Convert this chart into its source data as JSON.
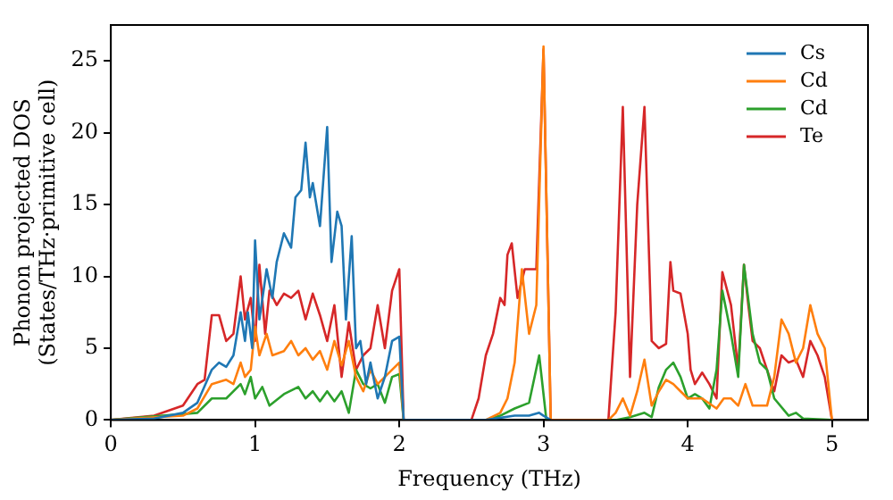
{
  "chart_data": {
    "type": "line",
    "xlabel": "Frequency (THz)",
    "ylabel": "Phonon projected DOS\n(States/THz·primitive cell)",
    "xlim": [
      0,
      5.25
    ],
    "ylim": [
      0,
      27.5
    ],
    "xticks": [
      0,
      1,
      2,
      3,
      4,
      5
    ],
    "yticks": [
      0,
      5,
      10,
      15,
      20,
      25
    ],
    "grid": false,
    "legend": "top right",
    "marker": "none",
    "line_style": "solid",
    "series": [
      {
        "name": "Cs",
        "color": "#1f77b4",
        "x": [
          0,
          0.3,
          0.5,
          0.6,
          0.7,
          0.75,
          0.8,
          0.85,
          0.9,
          0.93,
          0.95,
          0.98,
          1.0,
          1.03,
          1.08,
          1.12,
          1.15,
          1.2,
          1.25,
          1.28,
          1.32,
          1.35,
          1.38,
          1.4,
          1.45,
          1.5,
          1.53,
          1.57,
          1.6,
          1.63,
          1.67,
          1.7,
          1.73,
          1.77,
          1.8,
          1.85,
          1.9,
          1.95,
          2.0,
          2.03,
          2.6,
          2.8,
          2.9,
          2.97,
          3.0,
          3.05
        ],
        "values": [
          0,
          0.1,
          0.5,
          1.2,
          3.5,
          4,
          3.7,
          4.5,
          7.5,
          5.5,
          7.5,
          5,
          12.5,
          7,
          10.5,
          8.5,
          11,
          13,
          12,
          15.5,
          16,
          19.3,
          15.5,
          16.5,
          13.5,
          20.4,
          11,
          14.5,
          13.5,
          7,
          12.8,
          5,
          5.5,
          2.5,
          4,
          1.5,
          3,
          5.5,
          5.8,
          0,
          0,
          0.3,
          0.3,
          0.5,
          0.3,
          0
        ]
      },
      {
        "name": "Cd",
        "color": "#ff7f0e",
        "x": [
          0,
          0.5,
          0.6,
          0.7,
          0.8,
          0.85,
          0.9,
          0.93,
          0.97,
          1.0,
          1.03,
          1.08,
          1.12,
          1.2,
          1.25,
          1.3,
          1.35,
          1.4,
          1.45,
          1.5,
          1.55,
          1.6,
          1.65,
          1.7,
          1.75,
          1.8,
          1.85,
          1.9,
          1.95,
          2.0,
          2.03,
          2.6,
          2.7,
          2.75,
          2.8,
          2.85,
          2.9,
          2.95,
          3.0,
          3.05,
          3.45,
          3.5,
          3.55,
          3.6,
          3.65,
          3.7,
          3.75,
          3.8,
          3.85,
          3.9,
          3.95,
          4.0,
          4.1,
          4.2,
          4.25,
          4.3,
          4.35,
          4.4,
          4.45,
          4.55,
          4.6,
          4.65,
          4.7,
          4.75,
          4.8,
          4.85,
          4.9,
          4.95,
          5.0
        ],
        "values": [
          0,
          0.3,
          0.8,
          2.5,
          2.8,
          2.5,
          4,
          3,
          3.5,
          6.5,
          4.5,
          6,
          4.5,
          4.8,
          5.5,
          4.5,
          5,
          4.2,
          4.8,
          3.5,
          5.5,
          3.8,
          5.5,
          3,
          2,
          3.5,
          2.5,
          3,
          3.5,
          4,
          0,
          0,
          0.5,
          1.5,
          4,
          10.5,
          6,
          8,
          26,
          0,
          0,
          0.5,
          1.5,
          0.3,
          2,
          4.2,
          1,
          2,
          2.8,
          2.5,
          2,
          1.5,
          1.5,
          0.8,
          1.5,
          1.5,
          1,
          2.5,
          1,
          1,
          3,
          7,
          6,
          4,
          5,
          8,
          6,
          5,
          0
        ]
      },
      {
        "name": "Cd",
        "color": "#2ca02c",
        "x": [
          0,
          0.6,
          0.7,
          0.8,
          0.9,
          0.93,
          0.97,
          1.0,
          1.05,
          1.1,
          1.2,
          1.3,
          1.35,
          1.4,
          1.45,
          1.5,
          1.55,
          1.6,
          1.65,
          1.7,
          1.75,
          1.8,
          1.85,
          1.9,
          1.95,
          2.0,
          2.03,
          2.6,
          2.7,
          2.8,
          2.9,
          2.97,
          3.02,
          3.5,
          3.6,
          3.7,
          3.75,
          3.8,
          3.85,
          3.9,
          3.95,
          4.0,
          4.05,
          4.1,
          4.15,
          4.2,
          4.24,
          4.3,
          4.35,
          4.39,
          4.45,
          4.5,
          4.55,
          4.6,
          4.7,
          4.75,
          4.8,
          5.0
        ],
        "values": [
          0,
          0.5,
          1.5,
          1.5,
          2.5,
          1.8,
          3,
          1.5,
          2.3,
          1,
          1.8,
          2.3,
          1.5,
          2,
          1.3,
          2,
          1.3,
          2,
          0.5,
          3.5,
          2.5,
          2.2,
          2.5,
          1.2,
          3,
          3.2,
          0,
          0,
          0.3,
          0.8,
          1.2,
          4.5,
          0,
          0,
          0.2,
          0.5,
          0.2,
          2.3,
          3.5,
          4,
          3,
          1.5,
          1.8,
          1.5,
          0.8,
          3.5,
          9,
          6,
          3,
          10.8,
          6,
          4,
          3.5,
          1.5,
          0.3,
          0.5,
          0.1,
          0
        ]
      },
      {
        "name": "Te",
        "color": "#d62728",
        "x": [
          0,
          0.3,
          0.5,
          0.6,
          0.65,
          0.7,
          0.75,
          0.8,
          0.85,
          0.9,
          0.93,
          0.97,
          1.0,
          1.03,
          1.07,
          1.1,
          1.15,
          1.2,
          1.25,
          1.3,
          1.35,
          1.4,
          1.45,
          1.5,
          1.55,
          1.6,
          1.65,
          1.7,
          1.75,
          1.8,
          1.85,
          1.9,
          1.95,
          2.0,
          2.03,
          2.5,
          2.55,
          2.6,
          2.65,
          2.7,
          2.73,
          2.75,
          2.78,
          2.82,
          2.87,
          2.95,
          3.0,
          3.05,
          3.45,
          3.5,
          3.55,
          3.6,
          3.65,
          3.7,
          3.75,
          3.8,
          3.85,
          3.88,
          3.9,
          3.95,
          4.0,
          4.02,
          4.05,
          4.1,
          4.15,
          4.2,
          4.24,
          4.3,
          4.35,
          4.39,
          4.42,
          4.45,
          4.5,
          4.55,
          4.6,
          4.65,
          4.7,
          4.75,
          4.8,
          4.85,
          4.9,
          4.95,
          5.0
        ],
        "values": [
          0,
          0.3,
          1,
          2.5,
          2.8,
          7.3,
          7.3,
          5.5,
          6,
          10,
          7,
          8.5,
          5.5,
          10.8,
          6,
          9,
          8,
          8.8,
          8.5,
          9,
          7,
          8.8,
          7.3,
          5.5,
          8,
          3,
          6.8,
          3.5,
          4.5,
          5,
          8,
          5,
          9,
          10.5,
          0,
          0,
          1.5,
          4.5,
          6,
          8.5,
          8,
          11.5,
          12.3,
          8.5,
          10.5,
          10.5,
          25.8,
          0,
          0,
          7.5,
          21.8,
          3,
          15,
          21.8,
          5.5,
          5,
          5.3,
          11,
          9,
          8.8,
          6,
          3.5,
          2.5,
          3.3,
          2.5,
          1.5,
          10.3,
          8,
          3.5,
          10.8,
          8,
          5.5,
          5,
          3.5,
          2,
          4.5,
          4,
          4.2,
          3,
          5.5,
          4.5,
          3,
          0
        ]
      }
    ]
  }
}
